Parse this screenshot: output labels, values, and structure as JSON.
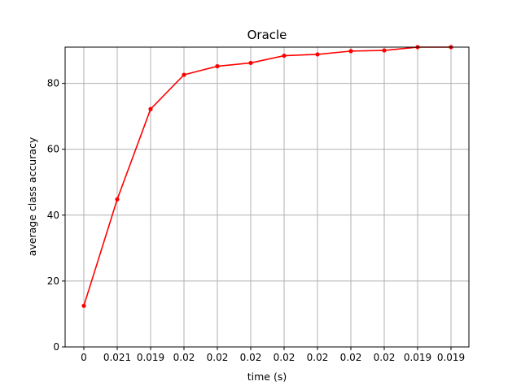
{
  "chart_data": {
    "type": "line",
    "title": "Oracle",
    "xlabel": "time (s)",
    "ylabel": "average class accuracy",
    "x_tick_labels": [
      "0",
      "0.021",
      "0.019",
      "0.02",
      "0.02",
      "0.02",
      "0.02",
      "0.02",
      "0.02",
      "0.02",
      "0.019",
      "0.019"
    ],
    "y_ticks": [
      0,
      20,
      40,
      60,
      80
    ],
    "ylim": [
      0,
      91
    ],
    "grid": true,
    "series": [
      {
        "color": "#ff0000",
        "values": [
          12.5,
          44.8,
          72.2,
          82.6,
          85.2,
          86.2,
          88.4,
          88.8,
          89.8,
          90.0,
          91.0,
          91.0
        ]
      }
    ]
  }
}
